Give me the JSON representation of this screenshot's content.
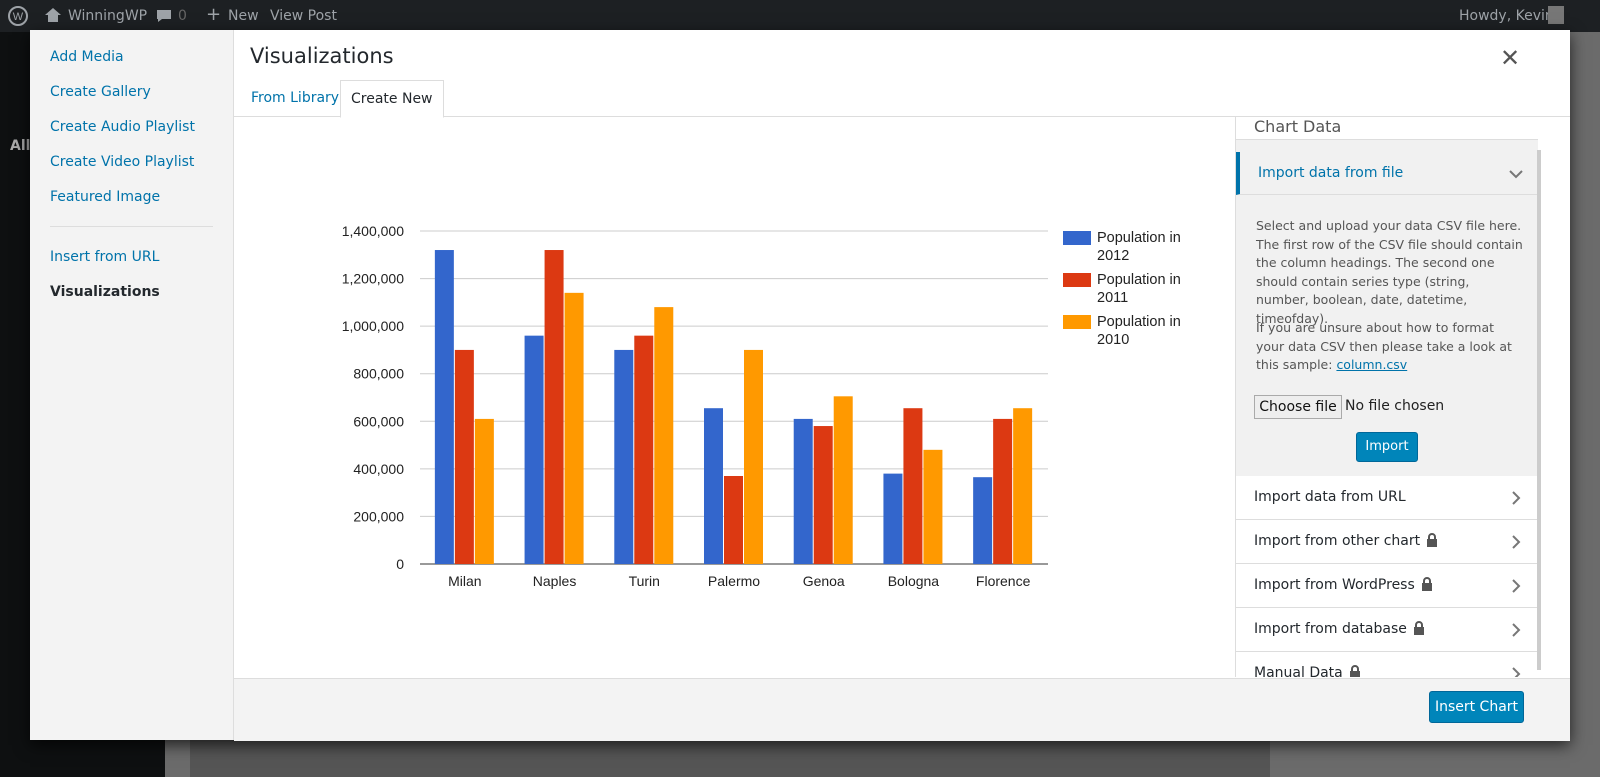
{
  "admin_bar": {
    "site": "WinningWP",
    "comments": "0",
    "new": "New",
    "view_post": "View Post",
    "greeting": "Howdy, Kevin"
  },
  "wp_menu": {
    "current": "All"
  },
  "modal": {
    "title": "Visualizations",
    "menu": [
      "Add Media",
      "Create Gallery",
      "Create Audio Playlist",
      "Create Video Playlist",
      "Featured Image",
      "Insert from URL",
      "Visualizations"
    ],
    "tabs": [
      "From Library",
      "Create New"
    ],
    "panel": {
      "header": "Chart Data",
      "open_section": "Import data from file",
      "description": "Select and upload your data CSV file here. The first row of the CSV file should contain the column headings. The second one should contain series type (string, number, boolean, date, datetime, timeofday).",
      "help": "If you are unsure about how to format your data CSV then please take a look at this sample:",
      "sample_link": "column.csv",
      "choose_file": "Choose file",
      "no_file": "No file chosen",
      "import": "Import",
      "sections": [
        "Import data from URL",
        "Import from other chart",
        "Import from WordPress",
        "Import from database",
        "Manual Data"
      ]
    },
    "insert": "Insert Chart"
  },
  "chart_data": {
    "type": "bar",
    "categories": [
      "Milan",
      "Naples",
      "Turin",
      "Palermo",
      "Genoa",
      "Bologna",
      "Florence"
    ],
    "series": [
      {
        "name": "Population in 2012",
        "color": "#3366cc",
        "values": [
          1320000,
          960000,
          900000,
          655000,
          610000,
          380000,
          365000
        ]
      },
      {
        "name": "Population in 2011",
        "color": "#dc3912",
        "values": [
          900000,
          1320000,
          960000,
          370000,
          580000,
          655000,
          610000
        ]
      },
      {
        "name": "Population in 2010",
        "color": "#ff9900",
        "values": [
          610000,
          1140000,
          1080000,
          900000,
          705000,
          480000,
          655000
        ]
      }
    ],
    "ylim": [
      0,
      1400000
    ],
    "yticks": [
      0,
      {
        "value": 200000,
        "label": "200,000"
      },
      {
        "value": 400000,
        "label": "400,000"
      },
      {
        "value": 600000,
        "label": "600,000"
      },
      {
        "value": 800000,
        "label": "800,000"
      },
      {
        "value": 1000000,
        "label": "1,000,000"
      },
      {
        "value": 1200000,
        "label": "1,200,000"
      },
      {
        "value": 1400000,
        "label": "1,400,000"
      }
    ],
    "grid": true,
    "legend": "right"
  }
}
